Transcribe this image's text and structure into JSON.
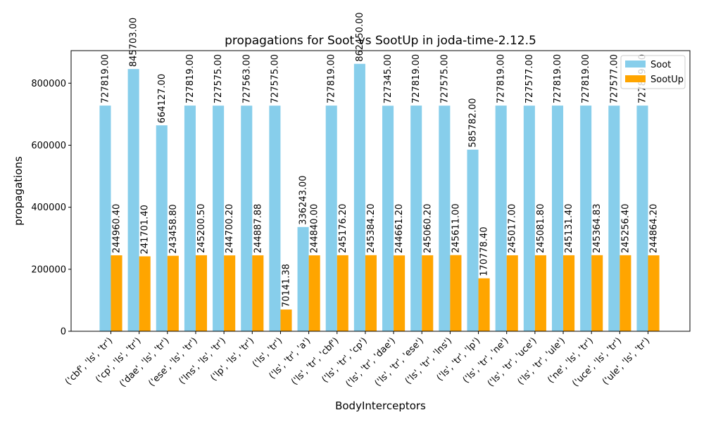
{
  "chart_data": {
    "type": "bar",
    "title": "propagations for Soot vs SootUp in joda-time-2.12.5",
    "xlabel": "BodyInterceptors",
    "ylabel": "propagations",
    "ylim": [
      0,
      905000
    ],
    "yticks": [
      0,
      200000,
      400000,
      600000,
      800000
    ],
    "grid": false,
    "legend_position": "top-right",
    "categories": [
      "('cbf', 'ls', 'tr')",
      "('cp', 'ls', 'tr')",
      "('dae', 'ls', 'tr')",
      "('ese', 'ls', 'tr')",
      "('lns', 'ls', 'tr')",
      "('lp', 'ls', 'tr')",
      "('ls', 'tr')",
      "('ls', 'tr', 'a')",
      "('ls', 'tr', 'cbf')",
      "('ls', 'tr', 'cp')",
      "('ls', 'tr', 'dae')",
      "('ls', 'tr', 'ese')",
      "('ls', 'tr', 'lns')",
      "('ls', 'tr', 'lp')",
      "('ls', 'tr', 'ne')",
      "('ls', 'tr', 'uce')",
      "('ls', 'tr', 'ule')",
      "('ne', 'ls', 'tr')",
      "('uce', 'ls', 'tr')",
      "('ule', 'ls', 'tr')"
    ],
    "series": [
      {
        "name": "Soot",
        "color": "#87CEEB",
        "values": [
          727819.0,
          845703.0,
          664127.0,
          727819.0,
          727575.0,
          727563.0,
          727575.0,
          336243.0,
          727819.0,
          862450.0,
          727345.0,
          727819.0,
          727575.0,
          585782.0,
          727819.0,
          727577.0,
          727819.0,
          727819.0,
          727577.0,
          727819.0
        ],
        "labels": [
          "727819.00",
          "845703.00",
          "664127.00",
          "727819.00",
          "727575.00",
          "727563.00",
          "727575.00",
          "336243.00",
          "727819.00",
          "862450.00",
          "727345.00",
          "727819.00",
          "727575.00",
          "585782.00",
          "727819.00",
          "727577.00",
          "727819.00",
          "727819.00",
          "727577.00",
          "727819.00"
        ]
      },
      {
        "name": "SootUp",
        "color": "#FFA500",
        "values": [
          244960.4,
          241701.4,
          243458.8,
          245200.5,
          244700.2,
          244887.88,
          70141.38,
          244840.0,
          245176.2,
          245384.2,
          244661.2,
          245060.2,
          245611.0,
          170778.4,
          245017.0,
          245081.8,
          245131.4,
          245364.83,
          245256.4,
          244864.2
        ],
        "labels": [
          "244960.40",
          "241701.40",
          "243458.80",
          "245200.50",
          "244700.20",
          "244887.88",
          "70141.38",
          "244840.00",
          "245176.20",
          "245384.20",
          "244661.20",
          "245060.20",
          "245611.00",
          "170778.40",
          "245017.00",
          "245081.80",
          "245131.40",
          "245364.83",
          "245256.40",
          "244864.20"
        ]
      }
    ]
  }
}
